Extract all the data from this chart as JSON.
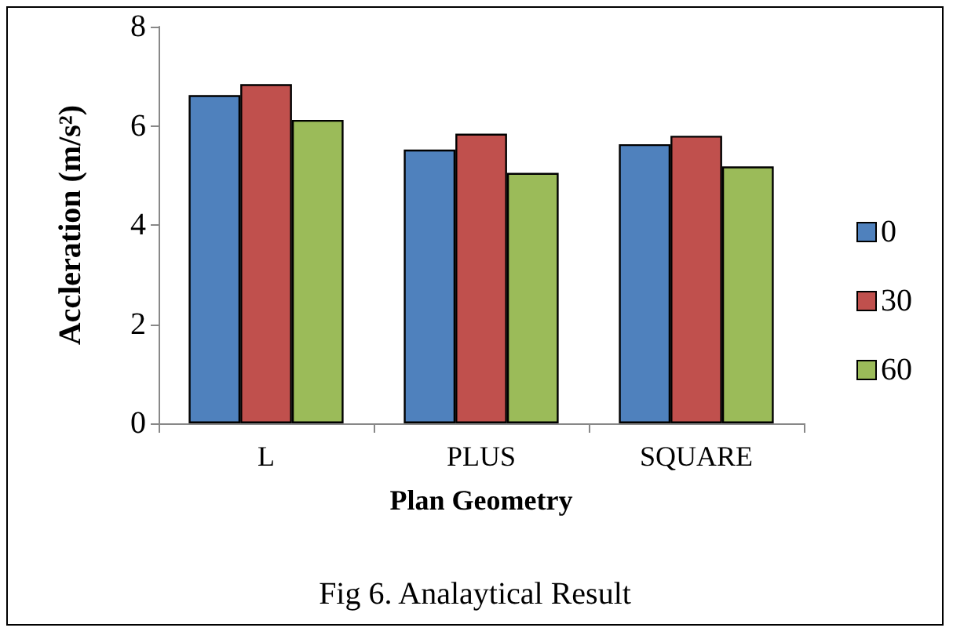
{
  "chart_data": {
    "type": "bar",
    "title": "Fig 6. Analaytical Result",
    "xlabel": "Plan Geometry",
    "ylabel": "Accleration (m/s²)",
    "categories": [
      "L",
      "PLUS",
      "SQUARE"
    ],
    "series": [
      {
        "name": "0",
        "color": "#4f81bd",
        "values": [
          6.62,
          5.52,
          5.63
        ]
      },
      {
        "name": "30",
        "color": "#c0504d",
        "values": [
          6.84,
          5.84,
          5.8
        ]
      },
      {
        "name": "60",
        "color": "#9bbb59",
        "values": [
          6.12,
          5.05,
          5.18
        ]
      }
    ],
    "ylim": [
      0,
      8
    ],
    "yticks": [
      0,
      2,
      4,
      6,
      8
    ],
    "grid": false,
    "legend": "right"
  }
}
